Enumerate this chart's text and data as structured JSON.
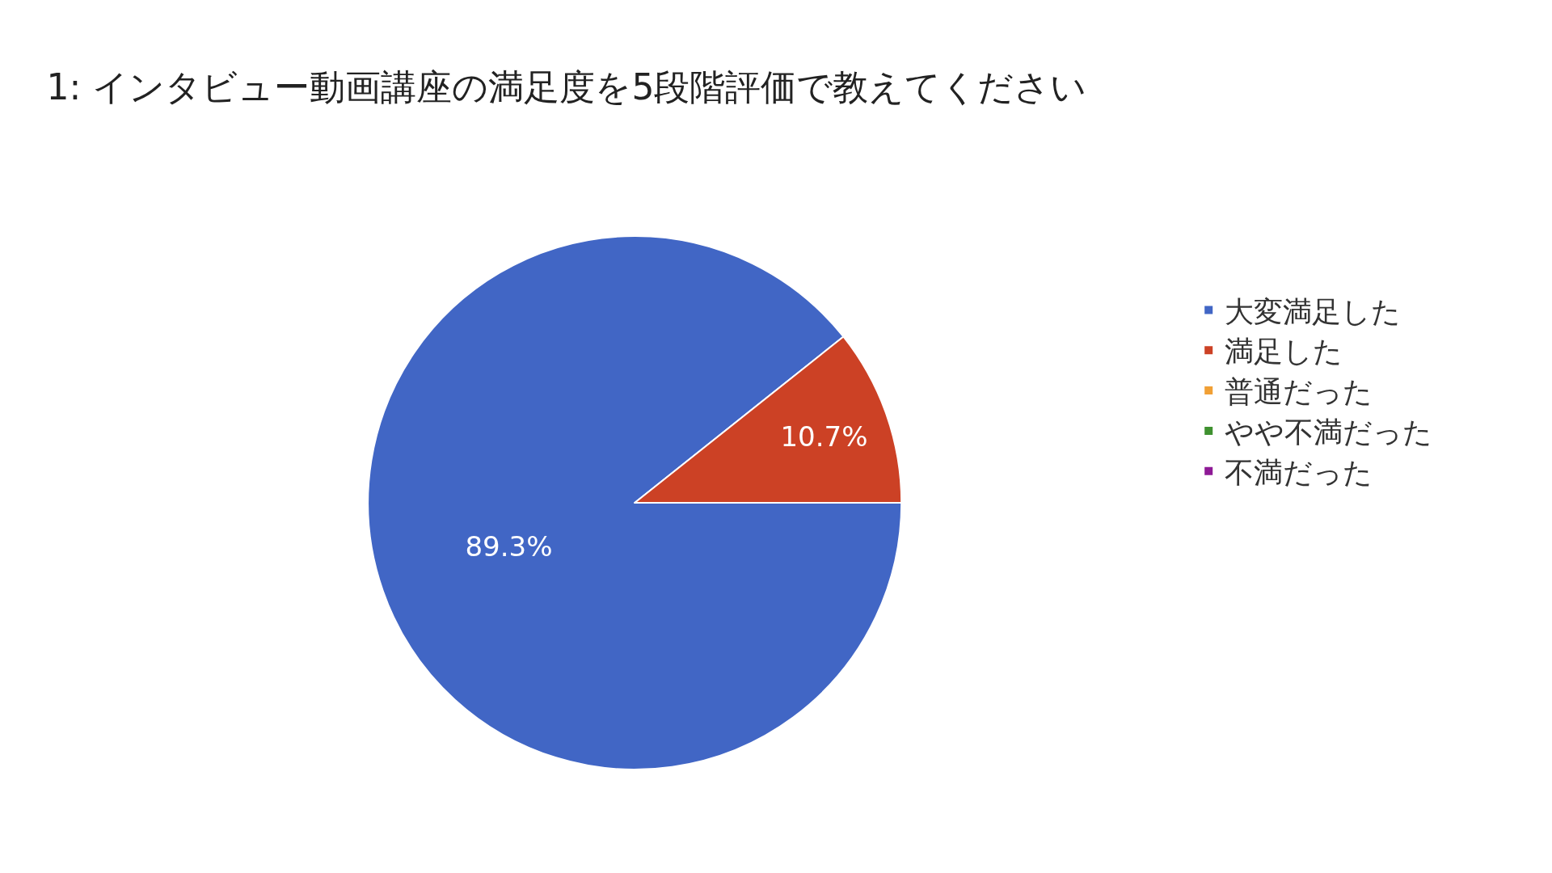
{
  "chart_data": {
    "type": "pie",
    "title": "1: インタビュー動画講座の満足度を5段階評価で教えてください",
    "categories": [
      "大変満足した",
      "満足した",
      "普通だった",
      "やや不満だった",
      "不満だった"
    ],
    "values": [
      89.3,
      10.7,
      0,
      0,
      0
    ],
    "value_labels": [
      "89.3%",
      "10.7%",
      null,
      null,
      null
    ],
    "colors": [
      "#4166c5",
      "#cc4125",
      "#f1a035",
      "#3f9130",
      "#8e1a96"
    ],
    "legend": "right"
  }
}
